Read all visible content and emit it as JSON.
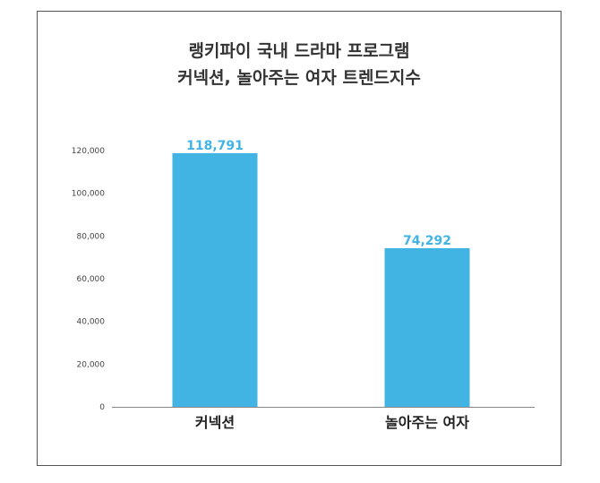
{
  "chart_data": {
    "type": "bar",
    "title_lines": [
      "랭키파이 국내 드라마 프로그램",
      "커넥션, 놀아주는 여자 트렌드지수"
    ],
    "categories": [
      "커넥션",
      "놀아주는 여자"
    ],
    "values": [
      118791,
      74292
    ],
    "value_labels": [
      "118,791",
      "74,292"
    ],
    "y_ticks": [
      0,
      20000,
      40000,
      60000,
      80000,
      100000,
      120000
    ],
    "y_tick_labels": [
      "0",
      "20,000",
      "40,000",
      "60,000",
      "80,000",
      "100,000",
      "120,000"
    ],
    "ylim": [
      0,
      120000
    ],
    "xlabel": "",
    "ylabel": "",
    "grid": false,
    "bar_color": "#41b4e3",
    "label_color": "#41b4e3"
  }
}
